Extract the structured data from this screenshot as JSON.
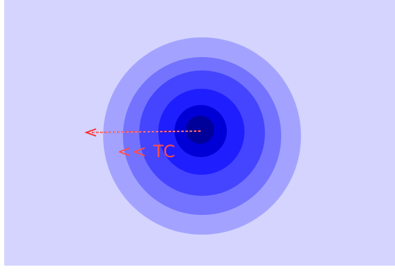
{
  "scene": {
    "background_color": "#d4d4ff",
    "ring_colors": [
      "#a3a3ff",
      "#7373ff",
      "#4545ff",
      "#1e1eff",
      "#0000d6",
      "#00009a"
    ],
    "arrow_color": "#ff2a2a",
    "label_color": "#ff4d4d"
  },
  "label": {
    "text": "<< TC"
  }
}
